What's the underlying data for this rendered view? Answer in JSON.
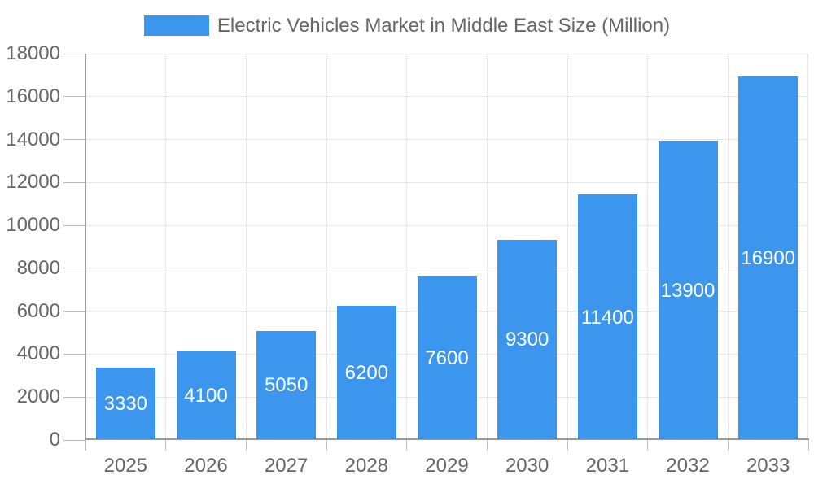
{
  "legend": {
    "label": "Electric Vehicles Market in Middle East Size (Million)"
  },
  "chart_data": {
    "type": "bar",
    "title": "Electric Vehicles Market in Middle East Size (Million)",
    "categories": [
      "2025",
      "2026",
      "2027",
      "2028",
      "2029",
      "2030",
      "2031",
      "2032",
      "2033"
    ],
    "values": [
      3330,
      4100,
      5050,
      6200,
      7600,
      9300,
      11400,
      13900,
      16900
    ],
    "xlabel": "",
    "ylabel": "",
    "ylim": [
      0,
      18000
    ],
    "ytick_step": 2000,
    "grid": true,
    "legend_position": "top-center",
    "bar_color": "#3D96EE",
    "bar_label_color": "#ffffff",
    "axis_line_color": "#999999",
    "tick_color": "#bbbbbb",
    "gridline_color": "#e6e6e6",
    "text_color": "#666666"
  }
}
